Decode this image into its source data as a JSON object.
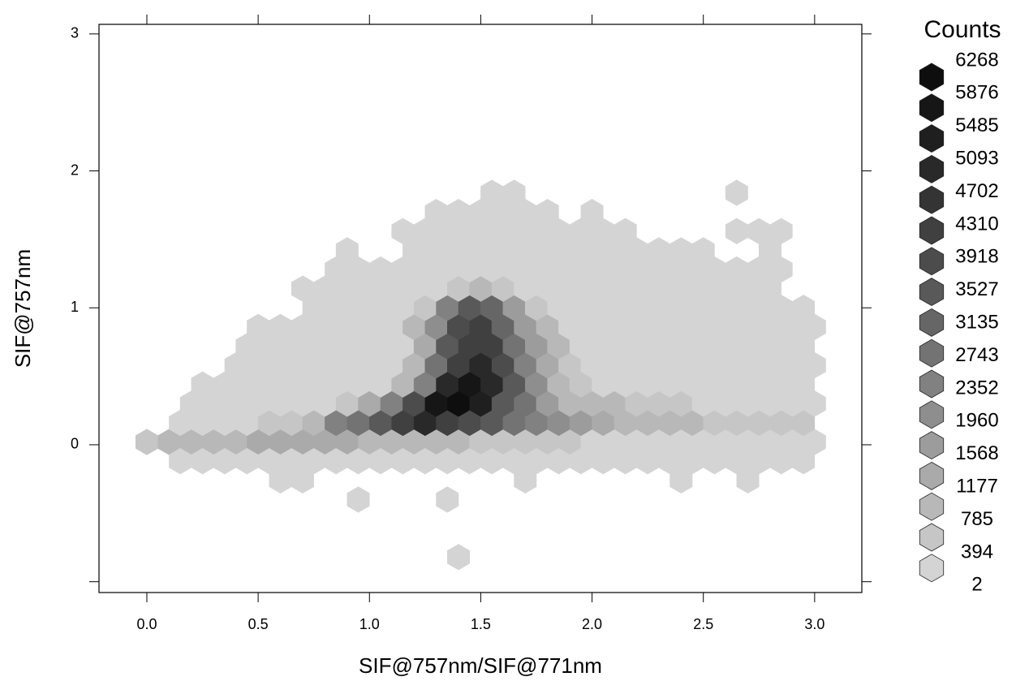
{
  "chart_data": {
    "type": "hexbin",
    "x_label": "SIF@757nm/SIF@771nm",
    "y_label": "SIF@757nm",
    "legend_title": "Counts",
    "legend_levels": [
      6268,
      5876,
      5485,
      5093,
      4702,
      4310,
      3918,
      3527,
      3135,
      2743,
      2352,
      1960,
      1568,
      1177,
      785,
      394,
      2
    ],
    "colors": [
      "#0e0e0e",
      "#161616",
      "#1f1f1f",
      "#292929",
      "#343434",
      "#404040",
      "#4c4c4c",
      "#595959",
      "#666666",
      "#737373",
      "#818181",
      "#8e8e8e",
      "#9c9c9c",
      "#aaaaaa",
      "#b8b8b8",
      "#c6c6c6",
      "#d4d4d4"
    ],
    "xlim": [
      -0.215,
      3.212
    ],
    "ylim": [
      -1.079,
      3.07
    ],
    "xticks": [
      {
        "value": 0,
        "label": "0.0"
      },
      0.5,
      {
        "value": 1,
        "label": "1.0"
      },
      1.5,
      {
        "value": 2,
        "label": "2.0"
      },
      2.5,
      {
        "value": 3,
        "label": "3.0"
      }
    ],
    "yticks": [
      {
        "value": -1,
        "label": null
      },
      0,
      1,
      2,
      3
    ],
    "rows": [
      {
        "y": 0.02,
        "x": [
          0.0,
          0.1,
          0.2,
          0.3,
          0.4,
          0.5,
          0.6,
          0.7,
          0.8,
          0.9,
          1.0,
          1.1,
          1.2,
          1.3,
          1.4,
          1.5,
          1.6,
          1.7,
          1.8,
          1.9,
          2.0,
          2.1,
          2.2,
          2.3,
          2.4,
          2.5,
          2.6,
          2.7,
          2.8,
          2.9,
          3.0
        ],
        "counts": [
          500,
          1000,
          1000,
          1000,
          1000,
          1300,
          1300,
          1300,
          1300,
          1300,
          1000,
          1000,
          1000,
          1000,
          900,
          500,
          500,
          500,
          500,
          500,
          200,
          200,
          200,
          200,
          200,
          200,
          200,
          200,
          200,
          200,
          200
        ]
      },
      {
        "y": 0.16,
        "x": [
          0.15,
          0.25,
          0.35,
          0.45,
          0.55,
          0.65,
          0.75,
          0.85,
          0.95,
          1.05,
          1.15,
          1.25,
          1.35,
          1.45,
          1.55,
          1.65,
          1.75,
          1.85,
          1.95,
          2.05,
          2.15,
          2.25,
          2.35,
          2.45,
          2.55,
          2.65,
          2.75,
          2.85,
          2.95
        ],
        "counts": [
          150,
          150,
          150,
          150,
          500,
          500,
          900,
          2400,
          3000,
          3700,
          4500,
          5200,
          4500,
          4200,
          3700,
          3000,
          2500,
          2100,
          1800,
          1400,
          1000,
          1000,
          1000,
          1000,
          600,
          600,
          600,
          600,
          600
        ]
      },
      {
        "y": 0.3,
        "x": [
          0.2,
          0.3,
          0.4,
          0.5,
          0.6,
          0.7,
          0.8,
          0.9,
          1.0,
          1.1,
          1.2,
          1.3,
          1.4,
          1.5,
          1.6,
          1.7,
          1.8,
          1.9,
          2.0,
          2.1,
          2.2,
          2.3,
          2.4,
          2.5,
          2.6,
          2.7,
          2.8,
          2.9,
          3.0
        ],
        "counts": [
          100,
          100,
          100,
          100,
          100,
          100,
          100,
          500,
          1300,
          2600,
          4300,
          6000,
          6268,
          5600,
          3800,
          3000,
          1900,
          1100,
          800,
          800,
          500,
          500,
          500,
          150,
          150,
          150,
          150,
          150,
          150
        ]
      },
      {
        "y": 0.44,
        "x": [
          0.25,
          0.35,
          0.45,
          0.55,
          0.65,
          0.75,
          0.85,
          0.95,
          1.05,
          1.15,
          1.25,
          1.35,
          1.45,
          1.55,
          1.65,
          1.75,
          1.85,
          1.95,
          2.05,
          2.15,
          2.25,
          2.35,
          2.45,
          2.55,
          2.65,
          2.75,
          2.85,
          2.95
        ],
        "counts": [
          100,
          100,
          100,
          100,
          100,
          100,
          100,
          100,
          100,
          800,
          2700,
          5300,
          6100,
          5400,
          3800,
          2200,
          1000,
          500,
          100,
          100,
          100,
          100,
          100,
          100,
          100,
          100,
          100,
          100
        ]
      },
      {
        "y": 0.58,
        "x": [
          0.4,
          0.5,
          0.6,
          0.7,
          0.8,
          0.9,
          1.0,
          1.1,
          1.2,
          1.3,
          1.4,
          1.5,
          1.6,
          1.7,
          1.8,
          1.9,
          2.0,
          2.1,
          2.2,
          2.3,
          2.4,
          2.5,
          2.6,
          2.7,
          2.8,
          2.9,
          3.0
        ],
        "counts": [
          100,
          100,
          100,
          100,
          100,
          100,
          100,
          100,
          800,
          3000,
          4600,
          5300,
          4200,
          2600,
          1400,
          500,
          100,
          100,
          100,
          100,
          100,
          100,
          100,
          100,
          100,
          100,
          100
        ]
      },
      {
        "y": 0.72,
        "x": [
          0.45,
          0.55,
          0.65,
          0.75,
          0.85,
          0.95,
          1.05,
          1.15,
          1.25,
          1.35,
          1.45,
          1.55,
          1.65,
          1.75,
          1.85,
          1.95,
          2.05,
          2.15,
          2.25,
          2.35,
          2.45,
          2.55,
          2.65,
          2.75,
          2.85,
          2.95
        ],
        "counts": [
          100,
          100,
          100,
          100,
          100,
          100,
          100,
          100,
          1400,
          3600,
          4700,
          4500,
          3100,
          1800,
          800,
          100,
          100,
          100,
          100,
          100,
          100,
          100,
          100,
          100,
          100,
          100
        ]
      },
      {
        "y": 0.86,
        "x": [
          0.5,
          0.6,
          0.7,
          0.8,
          0.9,
          1.0,
          1.1,
          1.2,
          1.3,
          1.4,
          1.5,
          1.6,
          1.7,
          1.8,
          1.9,
          2.0,
          2.1,
          2.2,
          2.3,
          2.4,
          2.5,
          2.6,
          2.7,
          2.8,
          2.9,
          3.0
        ],
        "counts": [
          100,
          100,
          100,
          100,
          100,
          100,
          100,
          800,
          2200,
          4000,
          4400,
          3200,
          1800,
          800,
          100,
          100,
          100,
          100,
          100,
          100,
          100,
          100,
          100,
          100,
          100,
          100
        ]
      },
      {
        "y": 1.0,
        "x": [
          0.75,
          0.85,
          0.95,
          1.05,
          1.15,
          1.25,
          1.35,
          1.45,
          1.55,
          1.65,
          1.75,
          1.85,
          1.95,
          2.05,
          2.15,
          2.25,
          2.35,
          2.45,
          2.55,
          2.65,
          2.75,
          2.85,
          2.95
        ],
        "counts": [
          100,
          100,
          100,
          100,
          100,
          500,
          2600,
          3900,
          3400,
          1900,
          500,
          100,
          100,
          100,
          100,
          100,
          100,
          100,
          100,
          100,
          100,
          100,
          100
        ]
      },
      {
        "y": 1.14,
        "x": [
          0.7,
          0.8,
          0.9,
          1.0,
          1.1,
          1.2,
          1.3,
          1.4,
          1.5,
          1.6,
          1.7,
          1.8,
          1.9,
          2.0,
          2.1,
          2.2,
          2.3,
          2.4,
          2.5,
          2.6,
          2.7,
          2.8
        ],
        "counts": [
          30,
          100,
          100,
          100,
          100,
          100,
          100,
          500,
          1100,
          500,
          100,
          100,
          100,
          100,
          100,
          100,
          100,
          100,
          100,
          100,
          100,
          100
        ]
      },
      {
        "y": 1.28,
        "x": [
          0.85,
          0.95,
          1.05,
          1.15,
          1.25,
          1.35,
          1.45,
          1.55,
          1.65,
          1.75,
          1.85,
          1.95,
          2.05,
          2.15,
          2.25,
          2.35,
          2.45,
          2.55,
          2.65,
          2.75,
          2.85
        ],
        "counts": [
          80,
          80,
          80,
          80,
          80,
          80,
          80,
          80,
          80,
          80,
          80,
          80,
          80,
          80,
          80,
          80,
          80,
          80,
          80,
          80,
          80
        ]
      },
      {
        "y": 1.42,
        "x": [
          0.9,
          1.2,
          1.3,
          1.4,
          1.5,
          1.6,
          1.7,
          1.8,
          1.9,
          2.0,
          2.1,
          2.2,
          2.3,
          2.4,
          2.5,
          2.8
        ],
        "counts": [
          50,
          50,
          50,
          50,
          50,
          50,
          50,
          50,
          50,
          50,
          50,
          50,
          50,
          50,
          50,
          50
        ]
      },
      {
        "y": 1.56,
        "x": [
          1.15,
          1.25,
          1.35,
          1.45,
          1.55,
          1.65,
          1.75,
          1.85,
          1.95,
          2.05,
          2.15,
          2.65,
          2.75,
          2.85
        ],
        "counts": [
          40,
          40,
          40,
          40,
          40,
          40,
          40,
          40,
          40,
          40,
          40,
          40,
          40,
          40
        ]
      },
      {
        "y": 1.7,
        "x": [
          1.3,
          1.4,
          1.5,
          1.6,
          1.7,
          1.8,
          2.0
        ],
        "counts": [
          30,
          30,
          30,
          30,
          30,
          30,
          30
        ]
      },
      {
        "y": 1.84,
        "x": [
          1.55,
          1.65,
          2.65
        ],
        "counts": [
          10,
          10,
          10
        ]
      },
      {
        "y": -0.12,
        "x": [
          0.15,
          0.25,
          0.35,
          0.45,
          0.55,
          0.65,
          0.75,
          0.85,
          0.95,
          1.05,
          1.15,
          1.25,
          1.35,
          1.45,
          1.55,
          1.65,
          1.75,
          1.85,
          1.95,
          2.05,
          2.15,
          2.25,
          2.35,
          2.45,
          2.55,
          2.65,
          2.75,
          2.85,
          2.95
        ],
        "counts": [
          100,
          100,
          100,
          100,
          100,
          100,
          100,
          100,
          100,
          100,
          100,
          100,
          100,
          100,
          100,
          100,
          100,
          100,
          100,
          100,
          100,
          100,
          100,
          100,
          100,
          100,
          100,
          100,
          100
        ]
      },
      {
        "y": -0.26,
        "x": [
          0.6,
          0.7,
          1.7,
          2.4,
          2.7
        ],
        "counts": [
          20,
          20,
          20,
          20,
          20
        ]
      },
      {
        "y": -0.4,
        "x": [
          0.95,
          1.35
        ],
        "counts": [
          8,
          8
        ]
      },
      {
        "y": -0.82,
        "x": [
          1.4
        ],
        "counts": [
          2
        ]
      }
    ]
  }
}
